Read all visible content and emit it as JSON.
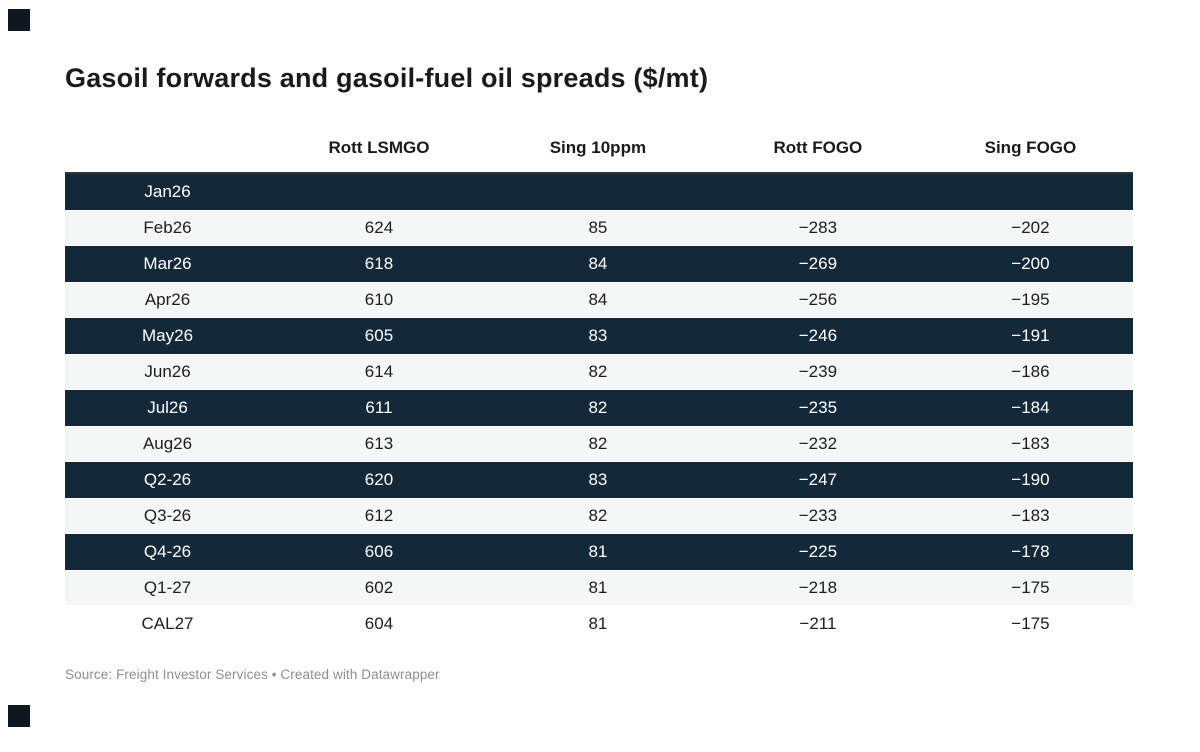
{
  "title": "Gasoil forwards and gasoil-fuel oil spreads ($/mt)",
  "table": {
    "columns": [
      "",
      "Rott LSMGO",
      "Sing 10ppm",
      "Rott FOGO",
      "Sing FOGO"
    ],
    "rows": [
      {
        "label": "Jan26",
        "values": [
          "",
          "",
          "",
          ""
        ],
        "style": "dark"
      },
      {
        "label": "Feb26",
        "values": [
          "624",
          "85",
          "−283",
          "−202"
        ],
        "style": "light"
      },
      {
        "label": "Mar26",
        "values": [
          "618",
          "84",
          "−269",
          "−200"
        ],
        "style": "dark"
      },
      {
        "label": "Apr26",
        "values": [
          "610",
          "84",
          "−256",
          "−195"
        ],
        "style": "light"
      },
      {
        "label": "May26",
        "values": [
          "605",
          "83",
          "−246",
          "−191"
        ],
        "style": "dark"
      },
      {
        "label": "Jun26",
        "values": [
          "614",
          "82",
          "−239",
          "−186"
        ],
        "style": "light"
      },
      {
        "label": "Jul26",
        "values": [
          "611",
          "82",
          "−235",
          "−184"
        ],
        "style": "dark"
      },
      {
        "label": "Aug26",
        "values": [
          "613",
          "82",
          "−232",
          "−183"
        ],
        "style": "light"
      },
      {
        "label": "Q2-26",
        "values": [
          "620",
          "83",
          "−247",
          "−190"
        ],
        "style": "dark"
      },
      {
        "label": "Q3-26",
        "values": [
          "612",
          "82",
          "−233",
          "−183"
        ],
        "style": "light"
      },
      {
        "label": "Q4-26",
        "values": [
          "606",
          "81",
          "−225",
          "−178"
        ],
        "style": "dark"
      },
      {
        "label": "Q1-27",
        "values": [
          "602",
          "81",
          "−218",
          "−175"
        ],
        "style": "light"
      },
      {
        "label": "CAL27",
        "values": [
          "604",
          "81",
          "−211",
          "−175"
        ],
        "style": "plain"
      }
    ]
  },
  "footer": {
    "source": "Source: Freight Investor Services • Created with Datawrapper"
  },
  "colors": {
    "dark_row_background": "#13293a",
    "light_row_background": "#f5f6f6",
    "header_rule": "#333333",
    "dark_row_text": "#ffffff",
    "light_row_text": "#1d1d1d",
    "title_text": "#1a1a1a",
    "source_text": "#8e8e8e",
    "corner_mark": "#10181f"
  },
  "chart_data": {
    "type": "table",
    "title": "Gasoil forwards and gasoil-fuel oil spreads ($/mt)",
    "columns": [
      "",
      "Rott LSMGO",
      "Sing 10ppm",
      "Rott FOGO",
      "Sing FOGO"
    ],
    "rows": [
      {
        "label": "Jan26",
        "rott_lsmgo": null,
        "sing_10ppm": null,
        "rott_fogo": null,
        "sing_fogo": null
      },
      {
        "label": "Feb26",
        "rott_lsmgo": 624,
        "sing_10ppm": 85,
        "rott_fogo": -283,
        "sing_fogo": -202
      },
      {
        "label": "Mar26",
        "rott_lsmgo": 618,
        "sing_10ppm": 84,
        "rott_fogo": -269,
        "sing_fogo": -200
      },
      {
        "label": "Apr26",
        "rott_lsmgo": 610,
        "sing_10ppm": 84,
        "rott_fogo": -256,
        "sing_fogo": -195
      },
      {
        "label": "May26",
        "rott_lsmgo": 605,
        "sing_10ppm": 83,
        "rott_fogo": -246,
        "sing_fogo": -191
      },
      {
        "label": "Jun26",
        "rott_lsmgo": 614,
        "sing_10ppm": 82,
        "rott_fogo": -239,
        "sing_fogo": -186
      },
      {
        "label": "Jul26",
        "rott_lsmgo": 611,
        "sing_10ppm": 82,
        "rott_fogo": -235,
        "sing_fogo": -184
      },
      {
        "label": "Aug26",
        "rott_lsmgo": 613,
        "sing_10ppm": 82,
        "rott_fogo": -232,
        "sing_fogo": -183
      },
      {
        "label": "Q2-26",
        "rott_lsmgo": 620,
        "sing_10ppm": 83,
        "rott_fogo": -247,
        "sing_fogo": -190
      },
      {
        "label": "Q3-26",
        "rott_lsmgo": 612,
        "sing_10ppm": 82,
        "rott_fogo": -233,
        "sing_fogo": -183
      },
      {
        "label": "Q4-26",
        "rott_lsmgo": 606,
        "sing_10ppm": 81,
        "rott_fogo": -225,
        "sing_fogo": -178
      },
      {
        "label": "Q1-27",
        "rott_lsmgo": 602,
        "sing_10ppm": 81,
        "rott_fogo": -218,
        "sing_fogo": -175
      },
      {
        "label": "CAL27",
        "rott_lsmgo": 604,
        "sing_10ppm": 81,
        "rott_fogo": -211,
        "sing_fogo": -175
      }
    ],
    "source": "Source: Freight Investor Services • Created with Datawrapper",
    "layout": {
      "striped": true,
      "stripe_colors": [
        "#13293a",
        "#f5f6f6"
      ],
      "grid": false
    }
  }
}
